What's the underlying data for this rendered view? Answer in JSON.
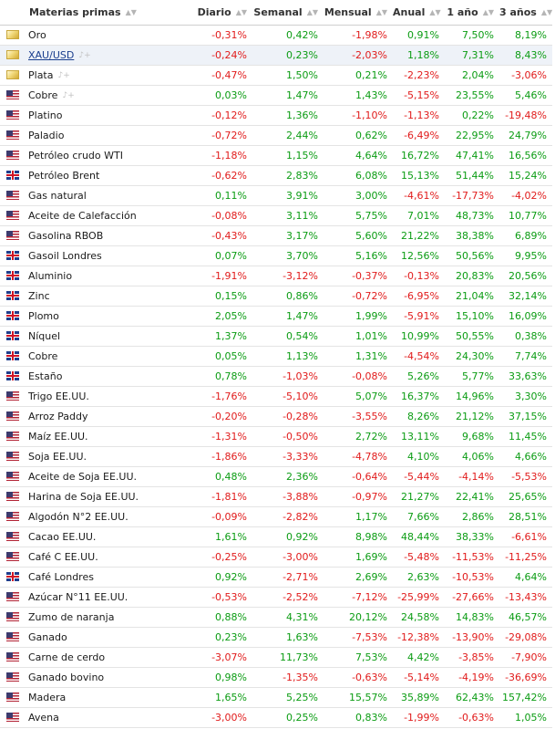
{
  "headers": [
    "Materias primas",
    "Diario",
    "Semanal",
    "Mensual",
    "Anual",
    "1 año",
    "3 años"
  ],
  "colors": {
    "positive": "#0b9c13",
    "negative": "#e11b1b",
    "highlight_row": "#eef2f8"
  },
  "rows": [
    {
      "name": "Oro",
      "flag": "gold-flag-icon",
      "values": [
        "-0,31%",
        "0,42%",
        "-1,98%",
        "0,91%",
        "7,50%",
        "8,19%"
      ]
    },
    {
      "name": "XAU/USD",
      "flag": "gold-flag-icon",
      "link": true,
      "bell": true,
      "highlight": true,
      "values": [
        "-0,24%",
        "0,23%",
        "-2,03%",
        "1,18%",
        "7,31%",
        "8,43%"
      ]
    },
    {
      "name": "Plata",
      "flag": "gold-flag-icon",
      "bell": true,
      "values": [
        "-0,47%",
        "1,50%",
        "0,21%",
        "-2,23%",
        "2,04%",
        "-3,06%"
      ]
    },
    {
      "name": "Cobre",
      "flag": "us-flag-icon",
      "bell": true,
      "values": [
        "0,03%",
        "1,47%",
        "1,43%",
        "-5,15%",
        "23,55%",
        "5,46%"
      ]
    },
    {
      "name": "Platino",
      "flag": "us-flag-icon",
      "values": [
        "-0,12%",
        "1,36%",
        "-1,10%",
        "-1,13%",
        "0,22%",
        "-19,48%"
      ]
    },
    {
      "name": "Paladio",
      "flag": "us-flag-icon",
      "values": [
        "-0,72%",
        "2,44%",
        "0,62%",
        "-6,49%",
        "22,95%",
        "24,79%"
      ]
    },
    {
      "name": "Petróleo crudo WTI",
      "flag": "us-flag-icon",
      "values": [
        "-1,18%",
        "1,15%",
        "4,64%",
        "16,72%",
        "47,41%",
        "16,56%"
      ]
    },
    {
      "name": "Petróleo Brent",
      "flag": "uk-flag-icon",
      "values": [
        "-0,62%",
        "2,83%",
        "6,08%",
        "15,13%",
        "51,44%",
        "15,24%"
      ]
    },
    {
      "name": "Gas natural",
      "flag": "us-flag-icon",
      "values": [
        "0,11%",
        "3,91%",
        "3,00%",
        "-4,61%",
        "-17,73%",
        "-4,02%"
      ]
    },
    {
      "name": "Aceite de Calefacción",
      "flag": "us-flag-icon",
      "values": [
        "-0,08%",
        "3,11%",
        "5,75%",
        "7,01%",
        "48,73%",
        "10,77%"
      ]
    },
    {
      "name": "Gasolina RBOB",
      "flag": "us-flag-icon",
      "values": [
        "-0,43%",
        "3,17%",
        "5,60%",
        "21,22%",
        "38,38%",
        "6,89%"
      ]
    },
    {
      "name": "Gasoil Londres",
      "flag": "uk-flag-icon",
      "values": [
        "0,07%",
        "3,70%",
        "5,16%",
        "12,56%",
        "50,56%",
        "9,95%"
      ]
    },
    {
      "name": "Aluminio",
      "flag": "uk-flag-icon",
      "values": [
        "-1,91%",
        "-3,12%",
        "-0,37%",
        "-0,13%",
        "20,83%",
        "20,56%"
      ]
    },
    {
      "name": "Zinc",
      "flag": "uk-flag-icon",
      "values": [
        "0,15%",
        "0,86%",
        "-0,72%",
        "-6,95%",
        "21,04%",
        "32,14%"
      ]
    },
    {
      "name": "Plomo",
      "flag": "uk-flag-icon",
      "values": [
        "2,05%",
        "1,47%",
        "1,99%",
        "-5,91%",
        "15,10%",
        "16,09%"
      ]
    },
    {
      "name": "Níquel",
      "flag": "uk-flag-icon",
      "values": [
        "1,37%",
        "0,54%",
        "1,01%",
        "10,99%",
        "50,55%",
        "0,38%"
      ]
    },
    {
      "name": "Cobre",
      "flag": "uk-flag-icon",
      "values": [
        "0,05%",
        "1,13%",
        "1,31%",
        "-4,54%",
        "24,30%",
        "7,74%"
      ]
    },
    {
      "name": "Estaño",
      "flag": "uk-flag-icon",
      "values": [
        "0,78%",
        "-1,03%",
        "-0,08%",
        "5,26%",
        "5,77%",
        "33,63%"
      ]
    },
    {
      "name": "Trigo EE.UU.",
      "flag": "us-flag-icon",
      "values": [
        "-1,76%",
        "-5,10%",
        "5,07%",
        "16,37%",
        "14,96%",
        "3,30%"
      ]
    },
    {
      "name": "Arroz Paddy",
      "flag": "us-flag-icon",
      "values": [
        "-0,20%",
        "-0,28%",
        "-3,55%",
        "8,26%",
        "21,12%",
        "37,15%"
      ]
    },
    {
      "name": "Maíz EE.UU.",
      "flag": "us-flag-icon",
      "values": [
        "-1,31%",
        "-0,50%",
        "2,72%",
        "13,11%",
        "9,68%",
        "11,45%"
      ]
    },
    {
      "name": "Soja EE.UU.",
      "flag": "us-flag-icon",
      "values": [
        "-1,86%",
        "-3,33%",
        "-4,78%",
        "4,10%",
        "4,06%",
        "4,66%"
      ]
    },
    {
      "name": "Aceite de Soja EE.UU.",
      "flag": "us-flag-icon",
      "values": [
        "0,48%",
        "2,36%",
        "-0,64%",
        "-5,44%",
        "-4,14%",
        "-5,53%"
      ]
    },
    {
      "name": "Harina de Soja EE.UU.",
      "flag": "us-flag-icon",
      "values": [
        "-1,81%",
        "-3,88%",
        "-0,97%",
        "21,27%",
        "22,41%",
        "25,65%"
      ]
    },
    {
      "name": "Algodón N°2 EE.UU.",
      "flag": "us-flag-icon",
      "values": [
        "-0,09%",
        "-2,82%",
        "1,17%",
        "7,66%",
        "2,86%",
        "28,51%"
      ]
    },
    {
      "name": "Cacao EE.UU.",
      "flag": "us-flag-icon",
      "values": [
        "1,61%",
        "0,92%",
        "8,98%",
        "48,44%",
        "38,33%",
        "-6,61%"
      ]
    },
    {
      "name": "Café C EE.UU.",
      "flag": "us-flag-icon",
      "values": [
        "-0,25%",
        "-3,00%",
        "1,69%",
        "-5,48%",
        "-11,53%",
        "-11,25%"
      ]
    },
    {
      "name": "Café Londres",
      "flag": "uk-flag-icon",
      "values": [
        "0,92%",
        "-2,71%",
        "2,69%",
        "2,63%",
        "-10,53%",
        "4,64%"
      ]
    },
    {
      "name": "Azúcar N°11 EE.UU.",
      "flag": "us-flag-icon",
      "values": [
        "-0,53%",
        "-2,52%",
        "-7,12%",
        "-25,99%",
        "-27,66%",
        "-13,43%"
      ]
    },
    {
      "name": "Zumo de naranja",
      "flag": "us-flag-icon",
      "values": [
        "0,88%",
        "4,31%",
        "20,12%",
        "24,58%",
        "14,83%",
        "46,57%"
      ]
    },
    {
      "name": "Ganado",
      "flag": "us-flag-icon",
      "values": [
        "0,23%",
        "1,63%",
        "-7,53%",
        "-12,38%",
        "-13,90%",
        "-29,08%"
      ]
    },
    {
      "name": "Carne de cerdo",
      "flag": "us-flag-icon",
      "values": [
        "-3,07%",
        "11,73%",
        "7,53%",
        "4,42%",
        "-3,85%",
        "-7,90%"
      ]
    },
    {
      "name": "Ganado bovino",
      "flag": "us-flag-icon",
      "values": [
        "0,98%",
        "-1,35%",
        "-0,63%",
        "-5,14%",
        "-4,19%",
        "-36,69%"
      ]
    },
    {
      "name": "Madera",
      "flag": "us-flag-icon",
      "values": [
        "1,65%",
        "5,25%",
        "15,57%",
        "35,89%",
        "62,43%",
        "157,42%"
      ]
    },
    {
      "name": "Avena",
      "flag": "us-flag-icon",
      "values": [
        "-3,00%",
        "0,25%",
        "0,83%",
        "-1,99%",
        "-0,63%",
        "1,05%"
      ]
    }
  ]
}
